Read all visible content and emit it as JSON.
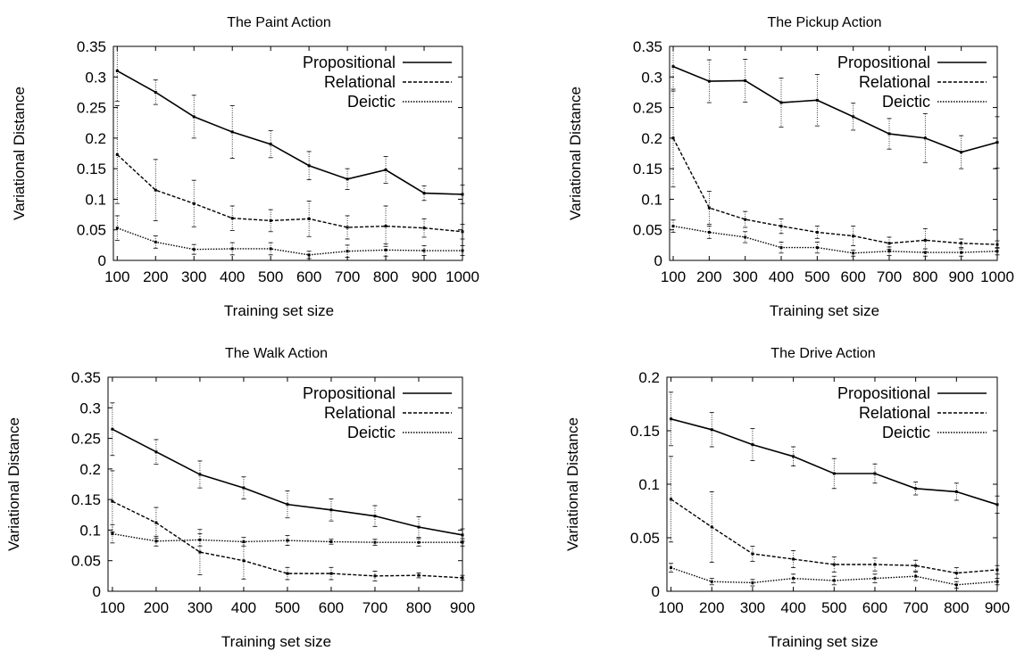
{
  "chart_data": [
    {
      "type": "line",
      "title": "The Paint Action",
      "xlabel": "Training set size",
      "ylabel": "Variational Distance",
      "xlim": [
        90,
        1000
      ],
      "ylim": [
        0,
        0.35
      ],
      "xticks": [
        100,
        200,
        300,
        400,
        500,
        600,
        700,
        800,
        900,
        1000
      ],
      "xtick_labels": [
        "100",
        "200",
        "300",
        "400",
        "500",
        "600",
        "700",
        "800",
        "900",
        "1000"
      ],
      "yticks": [
        0,
        0.05,
        0.1,
        0.15,
        0.2,
        0.25,
        0.3,
        0.35
      ],
      "ytick_labels": [
        "0",
        "0.05",
        "0.1",
        "0.15",
        "0.2",
        "0.25",
        "0.3",
        "0.35"
      ],
      "grid": false,
      "legend_position": "top-right",
      "x": [
        100,
        200,
        300,
        400,
        500,
        600,
        700,
        800,
        900,
        1000
      ],
      "series": [
        {
          "name": "Propositional",
          "style": "solid",
          "values": [
            0.31,
            0.275,
            0.235,
            0.21,
            0.19,
            0.155,
            0.133,
            0.148,
            0.11,
            0.108
          ],
          "err": [
            0.05,
            0.02,
            0.035,
            0.043,
            0.022,
            0.023,
            0.017,
            0.022,
            0.012,
            0.015
          ]
        },
        {
          "name": "Relational",
          "style": "dashed",
          "values": [
            0.173,
            0.115,
            0.093,
            0.069,
            0.065,
            0.068,
            0.054,
            0.056,
            0.053,
            0.047
          ],
          "err": [
            0.08,
            0.05,
            0.038,
            0.02,
            0.018,
            0.029,
            0.019,
            0.033,
            0.015,
            0.012
          ]
        },
        {
          "name": "Deictic",
          "style": "dotted",
          "values": [
            0.053,
            0.03,
            0.018,
            0.019,
            0.019,
            0.009,
            0.015,
            0.017,
            0.016,
            0.016
          ],
          "err": [
            0.02,
            0.01,
            0.008,
            0.01,
            0.01,
            0.006,
            0.01,
            0.01,
            0.008,
            0.008
          ]
        }
      ]
    },
    {
      "type": "line",
      "title": "The Pickup Action",
      "xlabel": "Training set size",
      "ylabel": "Variational Distance",
      "xlim": [
        90,
        1000
      ],
      "ylim": [
        0,
        0.35
      ],
      "xticks": [
        100,
        200,
        300,
        400,
        500,
        600,
        700,
        800,
        900,
        1000
      ],
      "xtick_labels": [
        "100",
        "200",
        "300",
        "400",
        "500",
        "600",
        "700",
        "800",
        "900",
        "1000"
      ],
      "yticks": [
        0,
        0.05,
        0.1,
        0.15,
        0.2,
        0.25,
        0.3,
        0.35
      ],
      "ytick_labels": [
        "0",
        "0.05",
        "0.1",
        "0.15",
        "0.2",
        "0.25",
        "0.3",
        "0.35"
      ],
      "grid": false,
      "legend_position": "top-right",
      "x": [
        100,
        200,
        300,
        400,
        500,
        600,
        700,
        800,
        900,
        1000
      ],
      "series": [
        {
          "name": "Propositional",
          "style": "solid",
          "values": [
            0.317,
            0.293,
            0.294,
            0.258,
            0.262,
            0.235,
            0.207,
            0.2,
            0.177,
            0.193
          ],
          "err": [
            0.04,
            0.035,
            0.035,
            0.04,
            0.042,
            0.022,
            0.025,
            0.04,
            0.027,
            0.042
          ]
        },
        {
          "name": "Relational",
          "style": "dashed",
          "values": [
            0.2,
            0.086,
            0.067,
            0.056,
            0.046,
            0.04,
            0.028,
            0.033,
            0.028,
            0.026
          ],
          "err": [
            0.08,
            0.027,
            0.013,
            0.012,
            0.01,
            0.016,
            0.01,
            0.019,
            0.007,
            0.006
          ]
        },
        {
          "name": "Deictic",
          "style": "dotted",
          "values": [
            0.056,
            0.046,
            0.038,
            0.021,
            0.021,
            0.012,
            0.015,
            0.013,
            0.013,
            0.015
          ],
          "err": [
            0.01,
            0.01,
            0.009,
            0.009,
            0.009,
            0.005,
            0.007,
            0.006,
            0.006,
            0.006
          ]
        }
      ]
    },
    {
      "type": "line",
      "title": "The Walk Action",
      "xlabel": "Training set size",
      "ylabel": "Variational Distance",
      "xlim": [
        90,
        900
      ],
      "ylim": [
        0,
        0.35
      ],
      "xticks": [
        100,
        200,
        300,
        400,
        500,
        600,
        700,
        800,
        900
      ],
      "xtick_labels": [
        "100",
        "200",
        "300",
        "400",
        "500",
        "600",
        "700",
        "800",
        "900"
      ],
      "yticks": [
        0,
        0.05,
        0.1,
        0.15,
        0.2,
        0.25,
        0.3,
        0.35
      ],
      "ytick_labels": [
        "0",
        "0.05",
        "0.1",
        "0.15",
        "0.2",
        "0.25",
        "0.3",
        "0.35"
      ],
      "grid": false,
      "legend_position": "top-right",
      "x": [
        100,
        200,
        300,
        400,
        500,
        600,
        700,
        800,
        900
      ],
      "series": [
        {
          "name": "Propositional",
          "style": "solid",
          "values": [
            0.265,
            0.228,
            0.191,
            0.169,
            0.142,
            0.133,
            0.123,
            0.105,
            0.092
          ],
          "err": [
            0.043,
            0.02,
            0.022,
            0.018,
            0.022,
            0.018,
            0.017,
            0.017,
            0.01
          ]
        },
        {
          "name": "Relational",
          "style": "dashed",
          "values": [
            0.147,
            0.112,
            0.064,
            0.05,
            0.029,
            0.029,
            0.025,
            0.026,
            0.022
          ],
          "err": [
            0.05,
            0.025,
            0.037,
            0.03,
            0.01,
            0.01,
            0.008,
            0.004,
            0.004
          ]
        },
        {
          "name": "Deictic",
          "style": "dotted",
          "values": [
            0.094,
            0.082,
            0.084,
            0.081,
            0.083,
            0.081,
            0.08,
            0.08,
            0.08
          ],
          "err": [
            0.015,
            0.008,
            0.01,
            0.007,
            0.008,
            0.004,
            0.005,
            0.006,
            0.006
          ]
        }
      ]
    },
    {
      "type": "line",
      "title": "The Drive Action",
      "xlabel": "Training set size",
      "ylabel": "Variational Distance",
      "xlim": [
        90,
        900
      ],
      "ylim": [
        0,
        0.2
      ],
      "xticks": [
        100,
        200,
        300,
        400,
        500,
        600,
        700,
        800,
        900
      ],
      "xtick_labels": [
        "100",
        "200",
        "300",
        "400",
        "500",
        "600",
        "700",
        "800",
        "900"
      ],
      "yticks": [
        0,
        0.05,
        0.1,
        0.15,
        0.2
      ],
      "ytick_labels": [
        "0",
        "0.05",
        "0.1",
        "0.15",
        "0.2"
      ],
      "grid": false,
      "legend_position": "top-right",
      "x": [
        100,
        200,
        300,
        400,
        500,
        600,
        700,
        800,
        900
      ],
      "series": [
        {
          "name": "Propositional",
          "style": "solid",
          "values": [
            0.161,
            0.151,
            0.137,
            0.126,
            0.11,
            0.11,
            0.096,
            0.093,
            0.081
          ],
          "err": [
            0.025,
            0.016,
            0.015,
            0.009,
            0.014,
            0.009,
            0.006,
            0.008,
            0.008
          ]
        },
        {
          "name": "Relational",
          "style": "dashed",
          "values": [
            0.086,
            0.06,
            0.035,
            0.03,
            0.025,
            0.025,
            0.024,
            0.017,
            0.02
          ],
          "err": [
            0.04,
            0.033,
            0.007,
            0.008,
            0.007,
            0.006,
            0.005,
            0.005,
            0.004
          ]
        },
        {
          "name": "Deictic",
          "style": "dotted",
          "values": [
            0.022,
            0.009,
            0.008,
            0.012,
            0.01,
            0.012,
            0.014,
            0.006,
            0.009
          ],
          "err": [
            0.004,
            0.003,
            0.003,
            0.004,
            0.004,
            0.004,
            0.004,
            0.003,
            0.003
          ]
        }
      ]
    }
  ]
}
